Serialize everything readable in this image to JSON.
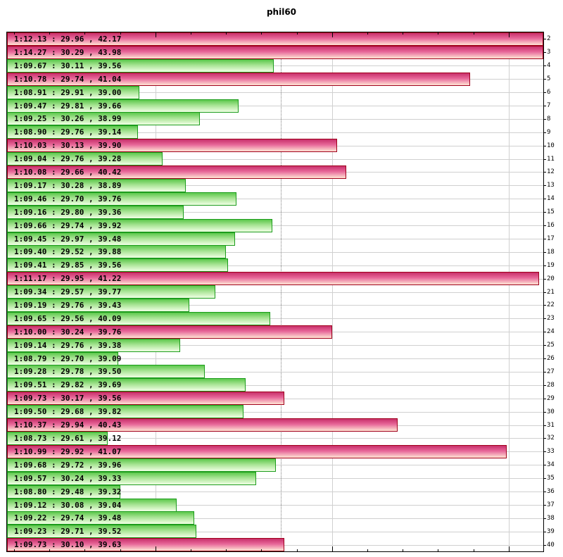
{
  "title": "phil60",
  "colors": {
    "slow_fill_top": "#c8306a",
    "slow_border": "#a0001c",
    "fast_fill_top": "#5cc84c",
    "fast_border": "#1c9c1c",
    "grid": "#d0d0d0"
  },
  "chart_data": {
    "type": "bar",
    "orientation": "horizontal",
    "title": "phil60",
    "xlabel": "",
    "ylabel": "",
    "x_range_seconds": [
      68.16,
      71.2
    ],
    "x_major_grid_seconds": [
      69.0,
      70.0,
      71.0
    ],
    "reference_line_seconds": 69.71,
    "grid": true,
    "legend": null,
    "categories": [
      "2",
      "3",
      "4",
      "5",
      "6",
      "7",
      "8",
      "9",
      "10",
      "11",
      "12",
      "13",
      "14",
      "15",
      "16",
      "17",
      "18",
      "19",
      "20",
      "21",
      "22",
      "23",
      "24",
      "25",
      "26",
      "27",
      "28",
      "29",
      "30",
      "31",
      "32",
      "33",
      "34",
      "35",
      "36",
      "37",
      "38",
      "39",
      "40"
    ],
    "rows": [
      {
        "lap": "2",
        "time": "1:12.13",
        "split1": "29.96",
        "split2": "42.17",
        "seconds": 72.13,
        "slow": true
      },
      {
        "lap": "3",
        "time": "1:14.27",
        "split1": "30.29",
        "split2": "43.98",
        "seconds": 74.27,
        "slow": true
      },
      {
        "lap": "4",
        "time": "1:09.67",
        "split1": "30.11",
        "split2": "39.56",
        "seconds": 69.67,
        "slow": false
      },
      {
        "lap": "5",
        "time": "1:10.78",
        "split1": "29.74",
        "split2": "41.04",
        "seconds": 70.78,
        "slow": true
      },
      {
        "lap": "6",
        "time": "1:08.91",
        "split1": "29.91",
        "split2": "39.00",
        "seconds": 68.91,
        "slow": false
      },
      {
        "lap": "7",
        "time": "1:09.47",
        "split1": "29.81",
        "split2": "39.66",
        "seconds": 69.47,
        "slow": false
      },
      {
        "lap": "8",
        "time": "1:09.25",
        "split1": "30.26",
        "split2": "38.99",
        "seconds": 69.25,
        "slow": false
      },
      {
        "lap": "9",
        "time": "1:08.90",
        "split1": "29.76",
        "split2": "39.14",
        "seconds": 68.9,
        "slow": false
      },
      {
        "lap": "10",
        "time": "1:10.03",
        "split1": "30.13",
        "split2": "39.90",
        "seconds": 70.03,
        "slow": true
      },
      {
        "lap": "11",
        "time": "1:09.04",
        "split1": "29.76",
        "split2": "39.28",
        "seconds": 69.04,
        "slow": false
      },
      {
        "lap": "12",
        "time": "1:10.08",
        "split1": "29.66",
        "split2": "40.42",
        "seconds": 70.08,
        "slow": true
      },
      {
        "lap": "13",
        "time": "1:09.17",
        "split1": "30.28",
        "split2": "38.89",
        "seconds": 69.17,
        "slow": false
      },
      {
        "lap": "14",
        "time": "1:09.46",
        "split1": "29.70",
        "split2": "39.76",
        "seconds": 69.46,
        "slow": false
      },
      {
        "lap": "15",
        "time": "1:09.16",
        "split1": "29.80",
        "split2": "39.36",
        "seconds": 69.16,
        "slow": false
      },
      {
        "lap": "16",
        "time": "1:09.66",
        "split1": "29.74",
        "split2": "39.92",
        "seconds": 69.66,
        "slow": false
      },
      {
        "lap": "17",
        "time": "1:09.45",
        "split1": "29.97",
        "split2": "39.48",
        "seconds": 69.45,
        "slow": false
      },
      {
        "lap": "18",
        "time": "1:09.40",
        "split1": "29.52",
        "split2": "39.88",
        "seconds": 69.4,
        "slow": false
      },
      {
        "lap": "19",
        "time": "1:09.41",
        "split1": "29.85",
        "split2": "39.56",
        "seconds": 69.41,
        "slow": false
      },
      {
        "lap": "20",
        "time": "1:11.17",
        "split1": "29.95",
        "split2": "41.22",
        "seconds": 71.17,
        "slow": true
      },
      {
        "lap": "21",
        "time": "1:09.34",
        "split1": "29.57",
        "split2": "39.77",
        "seconds": 69.34,
        "slow": false
      },
      {
        "lap": "22",
        "time": "1:09.19",
        "split1": "29.76",
        "split2": "39.43",
        "seconds": 69.19,
        "slow": false
      },
      {
        "lap": "23",
        "time": "1:09.65",
        "split1": "29.56",
        "split2": "40.09",
        "seconds": 69.65,
        "slow": false
      },
      {
        "lap": "24",
        "time": "1:10.00",
        "split1": "30.24",
        "split2": "39.76",
        "seconds": 70.0,
        "slow": true
      },
      {
        "lap": "25",
        "time": "1:09.14",
        "split1": "29.76",
        "split2": "39.38",
        "seconds": 69.14,
        "slow": false
      },
      {
        "lap": "26",
        "time": "1:08.79",
        "split1": "29.70",
        "split2": "39.09",
        "seconds": 68.79,
        "slow": false
      },
      {
        "lap": "27",
        "time": "1:09.28",
        "split1": "29.78",
        "split2": "39.50",
        "seconds": 69.28,
        "slow": false
      },
      {
        "lap": "28",
        "time": "1:09.51",
        "split1": "29.82",
        "split2": "39.69",
        "seconds": 69.51,
        "slow": false
      },
      {
        "lap": "29",
        "time": "1:09.73",
        "split1": "30.17",
        "split2": "39.56",
        "seconds": 69.73,
        "slow": true
      },
      {
        "lap": "30",
        "time": "1:09.50",
        "split1": "29.68",
        "split2": "39.82",
        "seconds": 69.5,
        "slow": false
      },
      {
        "lap": "31",
        "time": "1:10.37",
        "split1": "29.94",
        "split2": "40.43",
        "seconds": 70.37,
        "slow": true
      },
      {
        "lap": "32",
        "time": "1:08.73",
        "split1": "29.61",
        "split2": "39.12",
        "seconds": 68.73,
        "slow": false
      },
      {
        "lap": "33",
        "time": "1:10.99",
        "split1": "29.92",
        "split2": "41.07",
        "seconds": 70.99,
        "slow": true
      },
      {
        "lap": "34",
        "time": "1:09.68",
        "split1": "29.72",
        "split2": "39.96",
        "seconds": 69.68,
        "slow": false
      },
      {
        "lap": "35",
        "time": "1:09.57",
        "split1": "30.24",
        "split2": "39.33",
        "seconds": 69.57,
        "slow": false
      },
      {
        "lap": "36",
        "time": "1:08.80",
        "split1": "29.48",
        "split2": "39.32",
        "seconds": 68.8,
        "slow": false
      },
      {
        "lap": "37",
        "time": "1:09.12",
        "split1": "30.08",
        "split2": "39.04",
        "seconds": 69.12,
        "slow": false
      },
      {
        "lap": "38",
        "time": "1:09.22",
        "split1": "29.74",
        "split2": "39.48",
        "seconds": 69.22,
        "slow": false
      },
      {
        "lap": "39",
        "time": "1:09.23",
        "split1": "29.71",
        "split2": "39.52",
        "seconds": 69.23,
        "slow": false
      },
      {
        "lap": "40",
        "time": "1:09.73",
        "split1": "30.10",
        "split2": "39.63",
        "seconds": 69.73,
        "slow": true
      }
    ]
  }
}
